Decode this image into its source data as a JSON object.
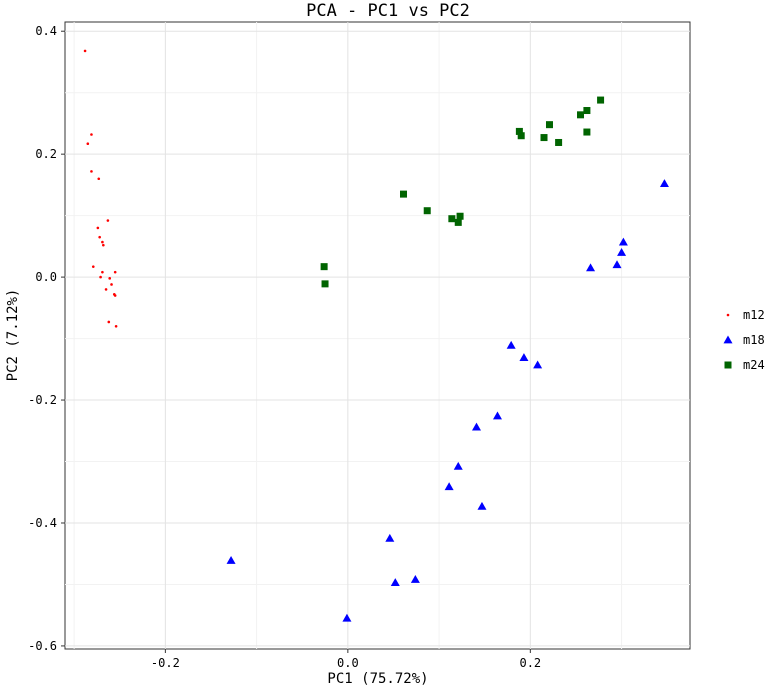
{
  "chart_data": {
    "type": "scatter",
    "title": "PCA - PC1 vs PC2",
    "xlabel": "PC1 (75.72%)",
    "ylabel": "PC2 (7.12%)",
    "xlim": [
      -0.31,
      0.375
    ],
    "ylim": [
      -0.605,
      0.415
    ],
    "xticks": [
      -0.2,
      0.0,
      0.2
    ],
    "xtick_labels": [
      "-0.2",
      "0.0",
      "0.2"
    ],
    "yticks": [
      0.4,
      0.2,
      0.0,
      -0.2,
      -0.4,
      -0.6
    ],
    "ytick_labels": [
      "0.4",
      "0.2",
      "0.0",
      "-0.2",
      "-0.4",
      "-0.6"
    ],
    "grid": true,
    "legend_position": "right",
    "series": [
      {
        "name": "m12",
        "color": "#ff0000",
        "marker": "dot",
        "points": [
          [
            -0.288,
            0.368
          ],
          [
            -0.281,
            0.232
          ],
          [
            -0.285,
            0.217
          ],
          [
            -0.281,
            0.172
          ],
          [
            -0.273,
            0.16
          ],
          [
            -0.263,
            0.092
          ],
          [
            -0.274,
            0.08
          ],
          [
            -0.272,
            0.065
          ],
          [
            -0.269,
            0.057
          ],
          [
            -0.268,
            0.052
          ],
          [
            -0.279,
            0.017
          ],
          [
            -0.269,
            0.008
          ],
          [
            -0.255,
            0.008
          ],
          [
            -0.271,
            0.0
          ],
          [
            -0.261,
            -0.002
          ],
          [
            -0.259,
            -0.012
          ],
          [
            -0.265,
            -0.02
          ],
          [
            -0.256,
            -0.028
          ],
          [
            -0.255,
            -0.03
          ],
          [
            -0.262,
            -0.073
          ],
          [
            -0.254,
            -0.08
          ]
        ]
      },
      {
        "name": "m18",
        "color": "#0000ff",
        "marker": "triangle",
        "points": [
          [
            0.347,
            0.152
          ],
          [
            0.302,
            0.057
          ],
          [
            0.3,
            0.04
          ],
          [
            0.295,
            0.02
          ],
          [
            0.266,
            0.015
          ],
          [
            0.179,
            -0.111
          ],
          [
            0.193,
            -0.131
          ],
          [
            0.208,
            -0.143
          ],
          [
            0.164,
            -0.226
          ],
          [
            0.141,
            -0.244
          ],
          [
            0.121,
            -0.308
          ],
          [
            0.111,
            -0.341
          ],
          [
            0.147,
            -0.373
          ],
          [
            0.046,
            -0.425
          ],
          [
            -0.128,
            -0.461
          ],
          [
            0.074,
            -0.492
          ],
          [
            0.052,
            -0.497
          ],
          [
            -0.001,
            -0.555
          ]
        ]
      },
      {
        "name": "m24",
        "color": "#006400",
        "marker": "square",
        "points": [
          [
            0.277,
            0.288
          ],
          [
            0.262,
            0.271
          ],
          [
            0.255,
            0.264
          ],
          [
            0.262,
            0.236
          ],
          [
            0.221,
            0.248
          ],
          [
            0.188,
            0.237
          ],
          [
            0.19,
            0.23
          ],
          [
            0.215,
            0.227
          ],
          [
            0.231,
            0.219
          ],
          [
            0.061,
            0.135
          ],
          [
            0.087,
            0.108
          ],
          [
            0.114,
            0.095
          ],
          [
            0.123,
            0.099
          ],
          [
            0.121,
            0.089
          ],
          [
            -0.026,
            0.017
          ],
          [
            -0.025,
            -0.011
          ]
        ]
      }
    ]
  }
}
